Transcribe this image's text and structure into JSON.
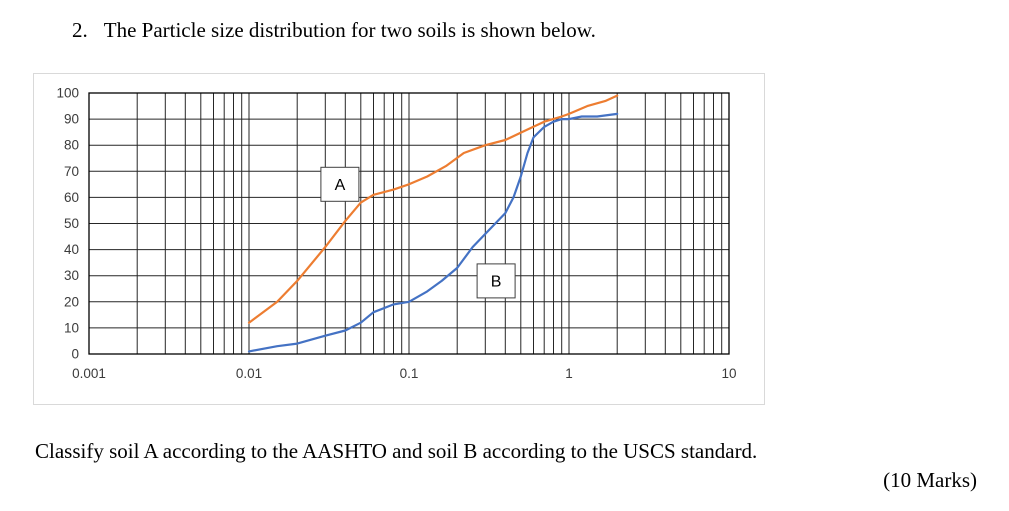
{
  "question": {
    "number": "2.",
    "text": "The Particle size distribution for two soils is shown below.",
    "instruction": "Classify soil A according to the AASHTO and soil B according to the USCS standard.",
    "marks": "(10 Marks)"
  },
  "chart_data": {
    "type": "line",
    "title": "",
    "xlabel": "",
    "ylabel": "",
    "x_scale": "log",
    "xlim": [
      0.001,
      10
    ],
    "ylim": [
      0,
      100
    ],
    "x_ticks": [
      "0.001",
      "0.01",
      "0.1",
      "1",
      "10"
    ],
    "y_ticks": [
      0,
      10,
      20,
      30,
      40,
      50,
      60,
      70,
      80,
      90,
      100
    ],
    "grid": "major-horizontal-and-log-vertical",
    "legend": "none",
    "colors": {
      "grid": "#262626",
      "axis": "#000000",
      "tick_label": "#3b3b3b",
      "annotation_border": "#404040",
      "annotation_fill": "#ffffff"
    },
    "series": [
      {
        "name": "A",
        "color": "#ED7D31",
        "points": [
          [
            0.01,
            12
          ],
          [
            0.015,
            20
          ],
          [
            0.02,
            28
          ],
          [
            0.03,
            41
          ],
          [
            0.04,
            51
          ],
          [
            0.05,
            58
          ],
          [
            0.06,
            61
          ],
          [
            0.08,
            63
          ],
          [
            0.1,
            65
          ],
          [
            0.13,
            68
          ],
          [
            0.17,
            72
          ],
          [
            0.22,
            77
          ],
          [
            0.3,
            80
          ],
          [
            0.4,
            82
          ],
          [
            0.55,
            86
          ],
          [
            0.7,
            89
          ],
          [
            0.9,
            91
          ],
          [
            1,
            92
          ],
          [
            1.3,
            95
          ],
          [
            1.7,
            97
          ],
          [
            2,
            99
          ]
        ]
      },
      {
        "name": "B",
        "color": "#4472C4",
        "points": [
          [
            0.01,
            1
          ],
          [
            0.015,
            3
          ],
          [
            0.02,
            4
          ],
          [
            0.03,
            7
          ],
          [
            0.04,
            9
          ],
          [
            0.05,
            12
          ],
          [
            0.06,
            16
          ],
          [
            0.08,
            19
          ],
          [
            0.1,
            20
          ],
          [
            0.13,
            24
          ],
          [
            0.16,
            28
          ],
          [
            0.2,
            33
          ],
          [
            0.25,
            41
          ],
          [
            0.3,
            46
          ],
          [
            0.4,
            54
          ],
          [
            0.45,
            60
          ],
          [
            0.5,
            68
          ],
          [
            0.55,
            77
          ],
          [
            0.6,
            83
          ],
          [
            0.7,
            87
          ],
          [
            0.8,
            89
          ],
          [
            0.9,
            90
          ],
          [
            1,
            90
          ],
          [
            1.2,
            91
          ],
          [
            1.5,
            91
          ],
          [
            2,
            92
          ]
        ]
      }
    ],
    "annotations": [
      {
        "text": "A",
        "x": 0.037,
        "y": 65
      },
      {
        "text": "B",
        "x": 0.35,
        "y": 28
      }
    ]
  }
}
